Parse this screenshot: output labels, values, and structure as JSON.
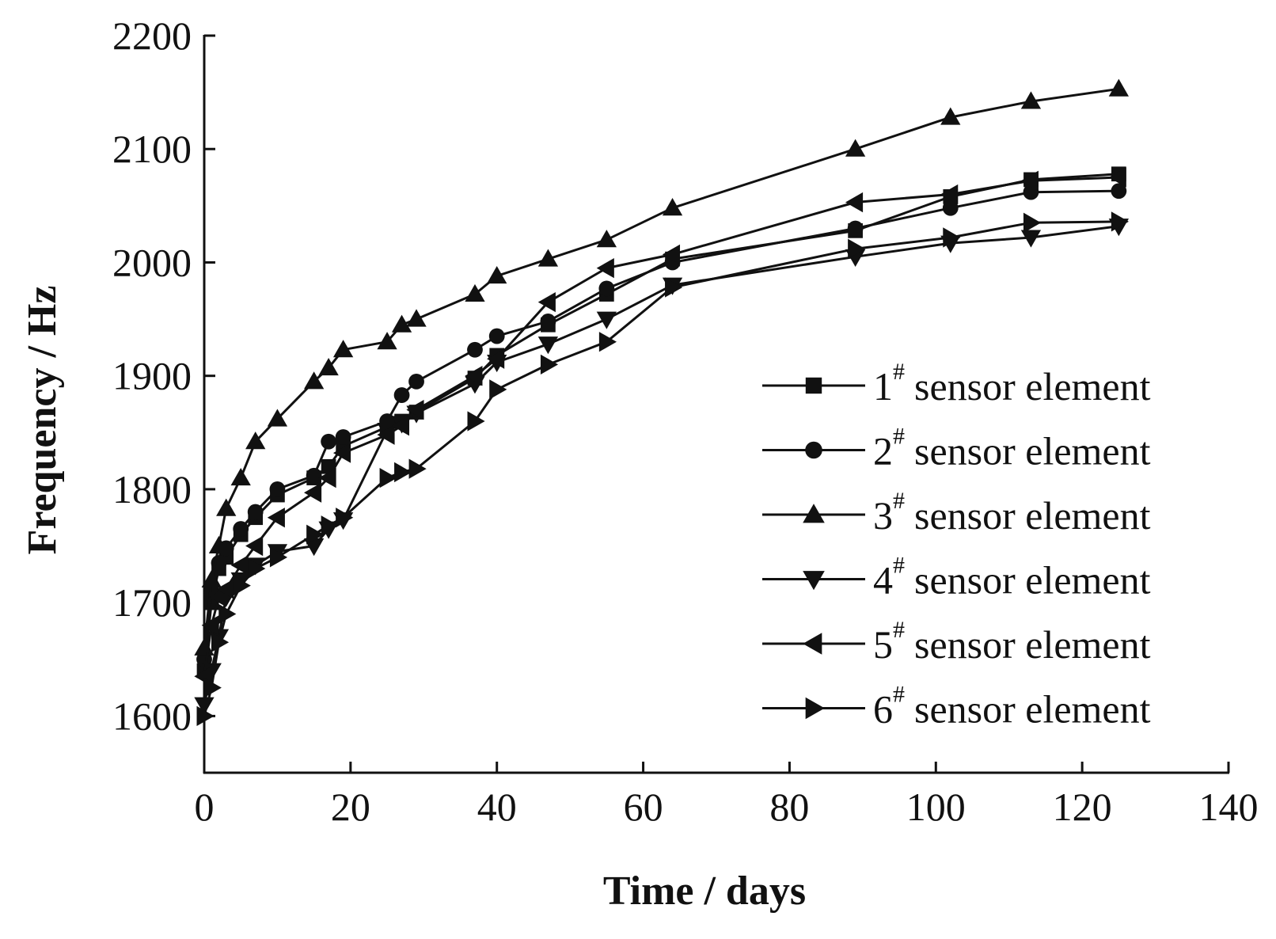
{
  "chart_data": {
    "type": "line",
    "xlabel": "Time / days",
    "ylabel": "Frequency / Hz",
    "xlim": [
      0,
      140
    ],
    "ylim": [
      1550,
      2200
    ],
    "xticks": [
      0,
      20,
      40,
      60,
      80,
      100,
      120,
      140
    ],
    "yticks": [
      1600,
      1700,
      1800,
      1900,
      2000,
      2100,
      2200
    ],
    "grid": false,
    "legend_position": "bottom-right",
    "legend_superscript": "#",
    "legend_suffix": "sensor element",
    "series": [
      {
        "name": "1",
        "marker": "square",
        "x": [
          0,
          1,
          2,
          3,
          5,
          7,
          10,
          15,
          17,
          19,
          25,
          27,
          29,
          37,
          40,
          47,
          55,
          64,
          89,
          102,
          113,
          125
        ],
        "y": [
          1640,
          1700,
          1730,
          1740,
          1760,
          1775,
          1795,
          1810,
          1820,
          1838,
          1855,
          1860,
          1868,
          1898,
          1918,
          1945,
          1972,
          2003,
          2028,
          2058,
          2073,
          2078
        ]
      },
      {
        "name": "2",
        "marker": "circle",
        "x": [
          0,
          1,
          2,
          3,
          5,
          7,
          10,
          15,
          17,
          19,
          25,
          27,
          29,
          37,
          40,
          47,
          55,
          64,
          89,
          102,
          113,
          125
        ],
        "y": [
          1650,
          1710,
          1735,
          1748,
          1765,
          1780,
          1800,
          1812,
          1842,
          1846,
          1860,
          1883,
          1895,
          1923,
          1935,
          1948,
          1977,
          2000,
          2030,
          2048,
          2062,
          2063
        ]
      },
      {
        "name": "3",
        "marker": "triangle-up",
        "x": [
          0,
          1,
          2,
          3,
          5,
          7,
          10,
          15,
          17,
          19,
          25,
          27,
          29,
          37,
          40,
          47,
          55,
          64,
          89,
          102,
          113,
          125
        ],
        "y": [
          1660,
          1720,
          1750,
          1783,
          1810,
          1842,
          1862,
          1895,
          1907,
          1923,
          1930,
          1945,
          1950,
          1972,
          1988,
          2003,
          2020,
          2048,
          2100,
          2128,
          2142,
          2153
        ]
      },
      {
        "name": "4",
        "marker": "triangle-down",
        "x": [
          0,
          1,
          2,
          3,
          5,
          7,
          10,
          15,
          17,
          19,
          25,
          27,
          29,
          37,
          40,
          47,
          55,
          64,
          89,
          102,
          113,
          125
        ],
        "y": [
          1610,
          1640,
          1670,
          1705,
          1720,
          1733,
          1745,
          1750,
          1765,
          1773,
          1852,
          1858,
          1867,
          1893,
          1912,
          1928,
          1950,
          1980,
          2005,
          2017,
          2022,
          2032
        ]
      },
      {
        "name": "5",
        "marker": "triangle-left",
        "x": [
          0,
          1,
          2,
          3,
          5,
          7,
          10,
          15,
          17,
          19,
          25,
          27,
          29,
          37,
          40,
          47,
          55,
          64,
          89,
          102,
          113,
          125
        ],
        "y": [
          1635,
          1680,
          1705,
          1712,
          1733,
          1750,
          1775,
          1797,
          1810,
          1832,
          1848,
          1856,
          1870,
          1900,
          1915,
          1965,
          1995,
          2007,
          2053,
          2060,
          2072,
          2075
        ]
      },
      {
        "name": "6",
        "marker": "triangle-right",
        "x": [
          0,
          1,
          2,
          3,
          5,
          7,
          10,
          15,
          17,
          19,
          25,
          27,
          29,
          37,
          40,
          47,
          55,
          64,
          89,
          102,
          113,
          125
        ],
        "y": [
          1600,
          1625,
          1665,
          1690,
          1715,
          1730,
          1740,
          1760,
          1768,
          1775,
          1810,
          1815,
          1818,
          1860,
          1888,
          1910,
          1930,
          1978,
          2012,
          2022,
          2035,
          2036
        ]
      }
    ]
  }
}
